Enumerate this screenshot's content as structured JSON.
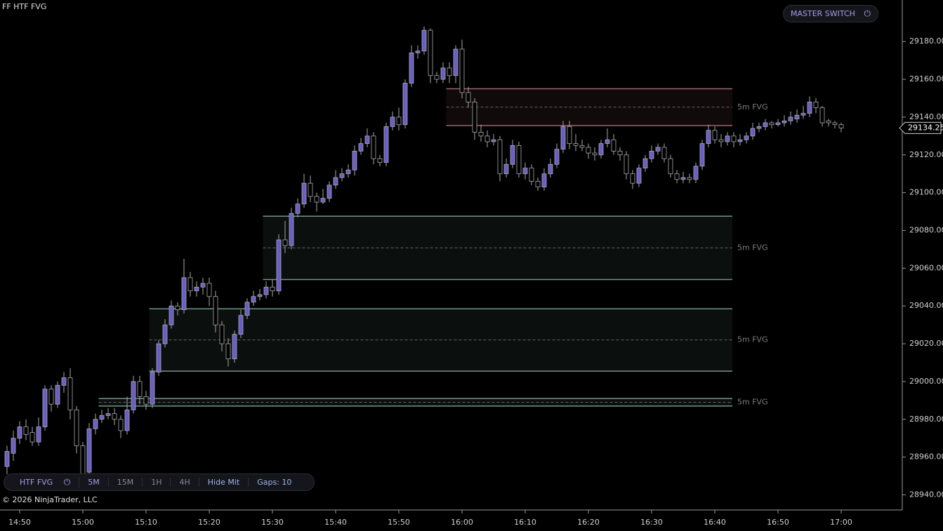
{
  "chart_data": {
    "type": "candlestick",
    "title": "FF HTF FVG",
    "categories": [
      "14:48",
      "14:49",
      "14:50",
      "14:51",
      "14:52",
      "14:53",
      "14:54",
      "14:55",
      "14:56",
      "14:57",
      "14:58",
      "14:59",
      "15:00",
      "15:01",
      "15:02",
      "15:03",
      "15:04",
      "15:05",
      "15:06",
      "15:07",
      "15:08",
      "15:09",
      "15:10",
      "15:11",
      "15:12",
      "15:13",
      "15:14",
      "15:15",
      "15:16",
      "15:17",
      "15:18",
      "15:19",
      "15:20",
      "15:21",
      "15:22",
      "15:23",
      "15:24",
      "15:25",
      "15:26",
      "15:27",
      "15:28",
      "15:29",
      "15:30",
      "15:31",
      "15:32",
      "15:33",
      "15:34",
      "15:35",
      "15:36",
      "15:37",
      "15:38",
      "15:39",
      "15:40",
      "15:41",
      "15:42",
      "15:43",
      "15:44",
      "15:45",
      "15:46",
      "15:47",
      "15:48",
      "15:49",
      "15:50",
      "15:51",
      "15:52",
      "15:53",
      "15:54",
      "15:55",
      "15:56",
      "15:57",
      "15:58",
      "15:59",
      "16:00",
      "16:01",
      "16:02",
      "16:03",
      "16:04",
      "16:05",
      "16:06",
      "16:07",
      "16:08",
      "16:09",
      "16:10",
      "16:11",
      "16:12",
      "16:13",
      "16:14",
      "16:15",
      "16:16",
      "16:17",
      "16:18",
      "16:19",
      "16:20",
      "16:21",
      "16:22",
      "16:23",
      "16:24",
      "16:25",
      "16:26",
      "16:27",
      "16:28",
      "16:29",
      "16:30",
      "16:31",
      "16:32",
      "16:33",
      "16:34",
      "16:35",
      "16:36",
      "16:37",
      "16:38",
      "16:39",
      "16:40",
      "16:41",
      "16:42",
      "16:43",
      "16:44",
      "16:45",
      "16:46",
      "16:47",
      "16:48",
      "16:49",
      "16:50",
      "16:51",
      "16:52",
      "16:53",
      "16:54",
      "16:55",
      "16:56",
      "16:57",
      "16:58",
      "16:59",
      "17:00"
    ],
    "open": [
      28955,
      28962,
      28970,
      28976,
      28973,
      28968,
      28976,
      28996,
      28988,
      28998,
      29002,
      28985,
      28966,
      28952,
      28975,
      28980,
      28982,
      28983,
      28980,
      28974,
      28985,
      29000,
      28992,
      28988,
      29005,
      29020,
      29030,
      29040,
      29038,
      29055,
      29048,
      29050,
      29052,
      29045,
      29030,
      29020,
      29012,
      29025,
      29035,
      29042,
      29045,
      29046,
      29050,
      29048,
      29075,
      29072,
      29089,
      29094,
      29105,
      29098,
      29095,
      29097,
      29104,
      29108,
      29110,
      29112,
      29122,
      29126,
      29130,
      29118,
      29116,
      29135,
      29140,
      29136,
      29158,
      29174,
      29175,
      29186,
      29162,
      29160,
      29166,
      29162,
      29176,
      29153,
      29148,
      29132,
      29130,
      29127,
      29128,
      29110,
      29115,
      29125,
      29110,
      29113,
      29106,
      29103,
      29110,
      29115,
      29123,
      29135,
      29126,
      29125,
      29124,
      29121,
      29120,
      29126,
      29128,
      29122,
      29120,
      29110,
      29105,
      29113,
      29118,
      29122,
      29124,
      29118,
      29110,
      29107,
      29108,
      29107,
      29114,
      29126,
      29133,
      29128,
      29127,
      29130,
      29127,
      29128,
      29130,
      29134,
      29135,
      29137,
      29136,
      29137,
      29138,
      29139,
      29141,
      29142,
      29148,
      29145,
      29138,
      29137,
      29136
    ],
    "high": [
      28966,
      28974,
      28979,
      28980,
      28976,
      28981,
      28998,
      28998,
      29000,
      29005,
      29007,
      28987,
      28968,
      28978,
      28983,
      28985,
      28986,
      28986,
      28982,
      28992,
      29003,
      29003,
      28995,
      29007,
      29022,
      29033,
      29043,
      29042,
      29065,
      29058,
      29053,
      29055,
      29055,
      29048,
      29032,
      29023,
      29027,
      29038,
      29044,
      29048,
      29049,
      29053,
      29054,
      29078,
      29085,
      29092,
      29097,
      29110,
      29109,
      29100,
      29102,
      29106,
      29112,
      29113,
      29115,
      29125,
      29129,
      29134,
      29132,
      29120,
      29137,
      29143,
      29145,
      29160,
      29178,
      29178,
      29188,
      29187,
      29164,
      29169,
      29169,
      29178,
      29181,
      29156,
      29150,
      29136,
      29133,
      29131,
      29130,
      29118,
      29128,
      29127,
      29116,
      29115,
      29108,
      29113,
      29118,
      29126,
      29138,
      29138,
      29131,
      29128,
      29126,
      29124,
      29128,
      29134,
      29131,
      29124,
      29122,
      29112,
      29115,
      29120,
      29125,
      29126,
      29126,
      29120,
      29112,
      29111,
      29110,
      29116,
      29128,
      29136,
      29135,
      29131,
      29132,
      29132,
      29131,
      29132,
      29137,
      29137,
      29139,
      29138,
      29139,
      29141,
      29143,
      29144,
      29146,
      29151,
      29150,
      29146,
      29139,
      29138,
      29137
    ],
    "low": [
      28951,
      28958,
      28967,
      28969,
      28966,
      28966,
      28974,
      28984,
      28986,
      28994,
      28980,
      28962,
      28946,
      28950,
      28972,
      28978,
      28980,
      28977,
      28970,
      28972,
      28983,
      28988,
      28985,
      28986,
      29003,
      29018,
      29028,
      29035,
      29036,
      29045,
      29045,
      29046,
      29040,
      29026,
      29016,
      29008,
      29010,
      29023,
      29033,
      29040,
      29043,
      29044,
      29045,
      29046,
      29068,
      29070,
      29087,
      29092,
      29095,
      29090,
      29094,
      29095,
      29102,
      29106,
      29108,
      29109,
      29120,
      29124,
      29115,
      29114,
      29114,
      29133,
      29133,
      29134,
      29156,
      29171,
      29173,
      29158,
      29158,
      29158,
      29158,
      29158,
      29150,
      29145,
      29128,
      29127,
      29124,
      29125,
      29106,
      29108,
      29113,
      29108,
      29107,
      29104,
      29101,
      29101,
      29108,
      29113,
      29121,
      29123,
      29122,
      29122,
      29118,
      29117,
      29118,
      29124,
      29120,
      29117,
      29107,
      29102,
      29103,
      29111,
      29116,
      29120,
      29116,
      29108,
      29105,
      29105,
      29105,
      29105,
      29112,
      29124,
      29126,
      29124,
      29125,
      29124,
      29125,
      29126,
      29128,
      29132,
      29133,
      29134,
      29135,
      29135,
      29136,
      29137,
      29139,
      29140,
      29142,
      29135,
      29135,
      29134,
      29132
    ],
    "close": [
      28963,
      28970,
      28976,
      28972,
      28968,
      28976,
      28996,
      28988,
      28998,
      29002,
      28985,
      28966,
      28950,
      28975,
      28980,
      28982,
      28983,
      28980,
      28974,
      28985,
      29000,
      28992,
      28988,
      29005,
      29020,
      29030,
      29040,
      29038,
      29055,
      29048,
      29050,
      29052,
      29045,
      29030,
      29020,
      29012,
      29025,
      29035,
      29042,
      29045,
      29046,
      29050,
      29048,
      29075,
      29072,
      29089,
      29094,
      29105,
      29098,
      29095,
      29097,
      29104,
      29108,
      29110,
      29112,
      29122,
      29126,
      29130,
      29118,
      29116,
      29135,
      29140,
      29136,
      29158,
      29174,
      29175,
      29186,
      29162,
      29160,
      29166,
      29162,
      29176,
      29153,
      29148,
      29132,
      29130,
      29127,
      29128,
      29110,
      29115,
      29125,
      29110,
      29113,
      29106,
      29103,
      29110,
      29115,
      29123,
      29135,
      29126,
      29125,
      29124,
      29121,
      29120,
      29126,
      29128,
      29122,
      29120,
      29110,
      29105,
      29113,
      29118,
      29122,
      29124,
      29118,
      29110,
      29107,
      29108,
      29107,
      29114,
      29126,
      29133,
      29128,
      29127,
      29130,
      29127,
      29128,
      29130,
      29134,
      29135,
      29137,
      29136,
      29137,
      29138,
      29140,
      29141,
      29142,
      29148,
      29145,
      29137,
      29137,
      29136,
      29134.25
    ],
    "up_color": "#6a5ec6",
    "down_color": "#000000",
    "outline_color": "#a8a8a8",
    "ylim": [
      28932,
      29202
    ],
    "yticks": [
      {
        "value": 28940,
        "label": "28940.00"
      },
      {
        "value": 28960,
        "label": "28960.00"
      },
      {
        "value": 28980,
        "label": "28980.00"
      },
      {
        "value": 29000,
        "label": "29000.00"
      },
      {
        "value": 29020,
        "label": "29020.00"
      },
      {
        "value": 29040,
        "label": "29040.00"
      },
      {
        "value": 29060,
        "label": "29060.00"
      },
      {
        "value": 29080,
        "label": "29080.00"
      },
      {
        "value": 29100,
        "label": "29100.00"
      },
      {
        "value": 29120,
        "label": "29120.00"
      },
      {
        "value": 29140,
        "label": "29140.00"
      },
      {
        "value": 29160,
        "label": "29160.00"
      },
      {
        "value": 29180,
        "label": "29180.00"
      }
    ],
    "xticks": [
      "14:50",
      "15:00",
      "15:10",
      "15:20",
      "15:30",
      "15:40",
      "15:50",
      "16:00",
      "16:10",
      "16:20",
      "16:30",
      "16:40",
      "16:50",
      "17:00"
    ],
    "zones": [
      {
        "label": "5m FVG",
        "start": "15:58",
        "top": 29155,
        "bottom": 29135.5,
        "color": "#9a6570"
      },
      {
        "label": "5m FVG",
        "start": "15:29",
        "top": 29087.5,
        "bottom": 29054,
        "color": "#6f9886"
      },
      {
        "label": "5m FVG",
        "start": "15:11",
        "top": 29038.5,
        "bottom": 29005.5,
        "color": "#6f9886"
      },
      {
        "label": "5m FVG",
        "start": "15:03",
        "top": 28991,
        "bottom": 28987,
        "color": "#6f9886"
      }
    ]
  },
  "master_switch": "MASTER SWITCH",
  "toolbar": {
    "name": "HTF FVG",
    "buttons": [
      "5M",
      "15M",
      "1H",
      "4H",
      "Hide Mit"
    ],
    "gaps": "Gaps: 10"
  },
  "copyright": "© 2026 NinjaTrader, LLC"
}
